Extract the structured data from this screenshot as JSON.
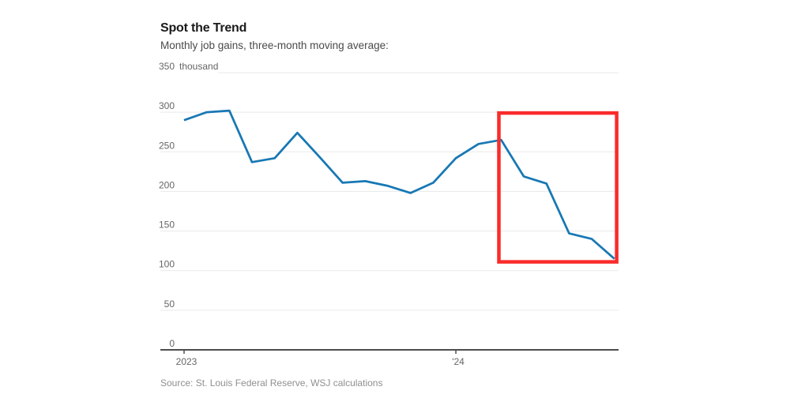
{
  "header": {
    "title": "Spot the Trend",
    "subtitle": "Monthly job gains, three-month moving average:"
  },
  "source_note": "Source: St. Louis Federal Reserve, WSJ calculations",
  "colors": {
    "line": "#1878b4",
    "highlight_box": "#fa2b2b",
    "gridline": "#e9e9e9",
    "axis": "#4d4d4d",
    "tick_label": "#666666",
    "title_text": "#1a1a1a",
    "subtitle_text": "#4a4a4a",
    "source_text": "#8f8f8f",
    "background": "#ffffff"
  },
  "chart_data": {
    "type": "line",
    "title": "Spot the Trend",
    "subtitle": "Monthly job gains, three-month moving average:",
    "unit": "thousand",
    "ylim": [
      0,
      350
    ],
    "yticks": [
      350,
      300,
      250,
      200,
      150,
      100,
      50,
      0
    ],
    "ytick_unit_label": "thousand",
    "grid": "horizontal",
    "legend": "none",
    "x": [
      "Jan 2023",
      "Feb 2023",
      "Mar 2023",
      "Apr 2023",
      "May 2023",
      "Jun 2023",
      "Jul 2023",
      "Aug 2023",
      "Sep 2023",
      "Oct 2023",
      "Nov 2023",
      "Dec 2023",
      "Jan 2024",
      "Feb 2024",
      "Mar 2024",
      "Apr 2024",
      "May 2024",
      "Jun 2024",
      "Jul 2024",
      "Aug 2024"
    ],
    "xticks": [
      {
        "label": "2023",
        "month_index": 0
      },
      {
        "label": "'24",
        "month_index": 12
      }
    ],
    "series": [
      {
        "name": "Monthly job gains, three-month moving average (thousands)",
        "values": [
          290,
          300,
          302,
          237,
          242,
          274,
          243,
          211,
          213,
          207,
          198,
          211,
          242,
          260,
          265,
          219,
          210,
          147,
          140,
          115
        ]
      }
    ],
    "annotation": {
      "type": "highlight_box",
      "description": "Red box highlighting the declining trend from March 2024 through August 2024",
      "month_index_start": 13.9,
      "month_index_end": 19.1,
      "value_top": 299,
      "value_bottom": 111
    }
  }
}
